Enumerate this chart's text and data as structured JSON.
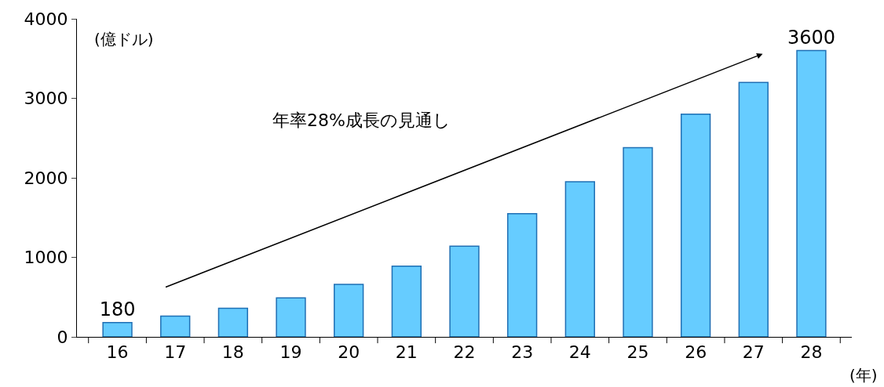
{
  "chart_data": {
    "type": "bar",
    "ylabel": "(億ドル)",
    "xlabel": "(年)",
    "categories": [
      "16",
      "17",
      "18",
      "19",
      "20",
      "21",
      "22",
      "23",
      "24",
      "25",
      "26",
      "27",
      "28"
    ],
    "values": [
      180,
      260,
      360,
      490,
      660,
      890,
      1140,
      1550,
      1950,
      2380,
      2800,
      3200,
      3600
    ],
    "value_labels": [
      "180",
      null,
      null,
      null,
      null,
      null,
      null,
      null,
      null,
      null,
      null,
      null,
      "3600"
    ],
    "color": "#66ccff",
    "ylim": [
      0,
      4000
    ],
    "yticks": [
      0,
      1000,
      2000,
      3000,
      4000
    ],
    "legend": false,
    "annotations": [
      "年率28%成長の見通し"
    ]
  }
}
